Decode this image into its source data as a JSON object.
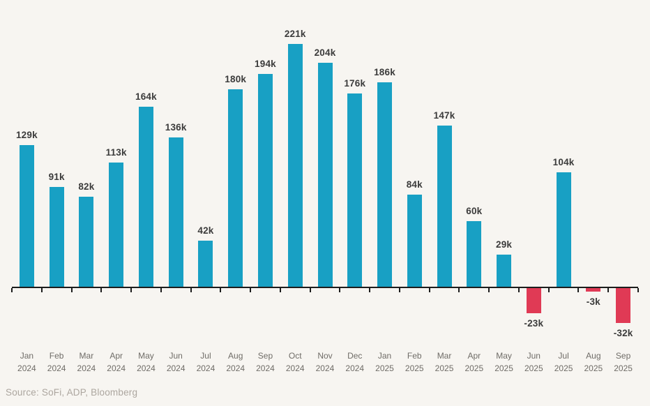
{
  "chart_data": {
    "type": "bar",
    "title": "",
    "xlabel": "",
    "ylabel": "",
    "ylim": [
      -60,
      240
    ],
    "grid": false,
    "legend": null,
    "unit": "k",
    "categories": [
      {
        "month": "Jan",
        "year": "2024"
      },
      {
        "month": "Feb",
        "year": "2024"
      },
      {
        "month": "Mar",
        "year": "2024"
      },
      {
        "month": "Apr",
        "year": "2024"
      },
      {
        "month": "May",
        "year": "2024"
      },
      {
        "month": "Jun",
        "year": "2024"
      },
      {
        "month": "Jul",
        "year": "2024"
      },
      {
        "month": "Aug",
        "year": "2024"
      },
      {
        "month": "Sep",
        "year": "2024"
      },
      {
        "month": "Oct",
        "year": "2024"
      },
      {
        "month": "Nov",
        "year": "2024"
      },
      {
        "month": "Dec",
        "year": "2024"
      },
      {
        "month": "Jan",
        "year": "2025"
      },
      {
        "month": "Feb",
        "year": "2025"
      },
      {
        "month": "Mar",
        "year": "2025"
      },
      {
        "month": "Apr",
        "year": "2025"
      },
      {
        "month": "May",
        "year": "2025"
      },
      {
        "month": "Jun",
        "year": "2025"
      },
      {
        "month": "Jul",
        "year": "2025"
      },
      {
        "month": "Aug",
        "year": "2025"
      },
      {
        "month": "Sep",
        "year": "2025"
      }
    ],
    "values": [
      129,
      91,
      82,
      113,
      164,
      136,
      42,
      180,
      194,
      221,
      204,
      176,
      186,
      84,
      147,
      60,
      29,
      -23,
      104,
      -3,
      -32
    ],
    "value_labels": [
      "129k",
      "91k",
      "82k",
      "113k",
      "164k",
      "136k",
      "42k",
      "180k",
      "194k",
      "221k",
      "204k",
      "176k",
      "186k",
      "84k",
      "147k",
      "60k",
      "29k",
      "-23k",
      "104k",
      "-3k",
      "-32k"
    ],
    "colors": {
      "positive_bar": "#18A0C4",
      "negative_bar": "#E03A55",
      "axis": "#1c1c1c",
      "value_label": "#3B3B3B",
      "axis_label": "#6F6C67",
      "background": "#F7F5F1"
    }
  },
  "source": {
    "label": "Source: SoFi, ADP, Bloomberg"
  }
}
